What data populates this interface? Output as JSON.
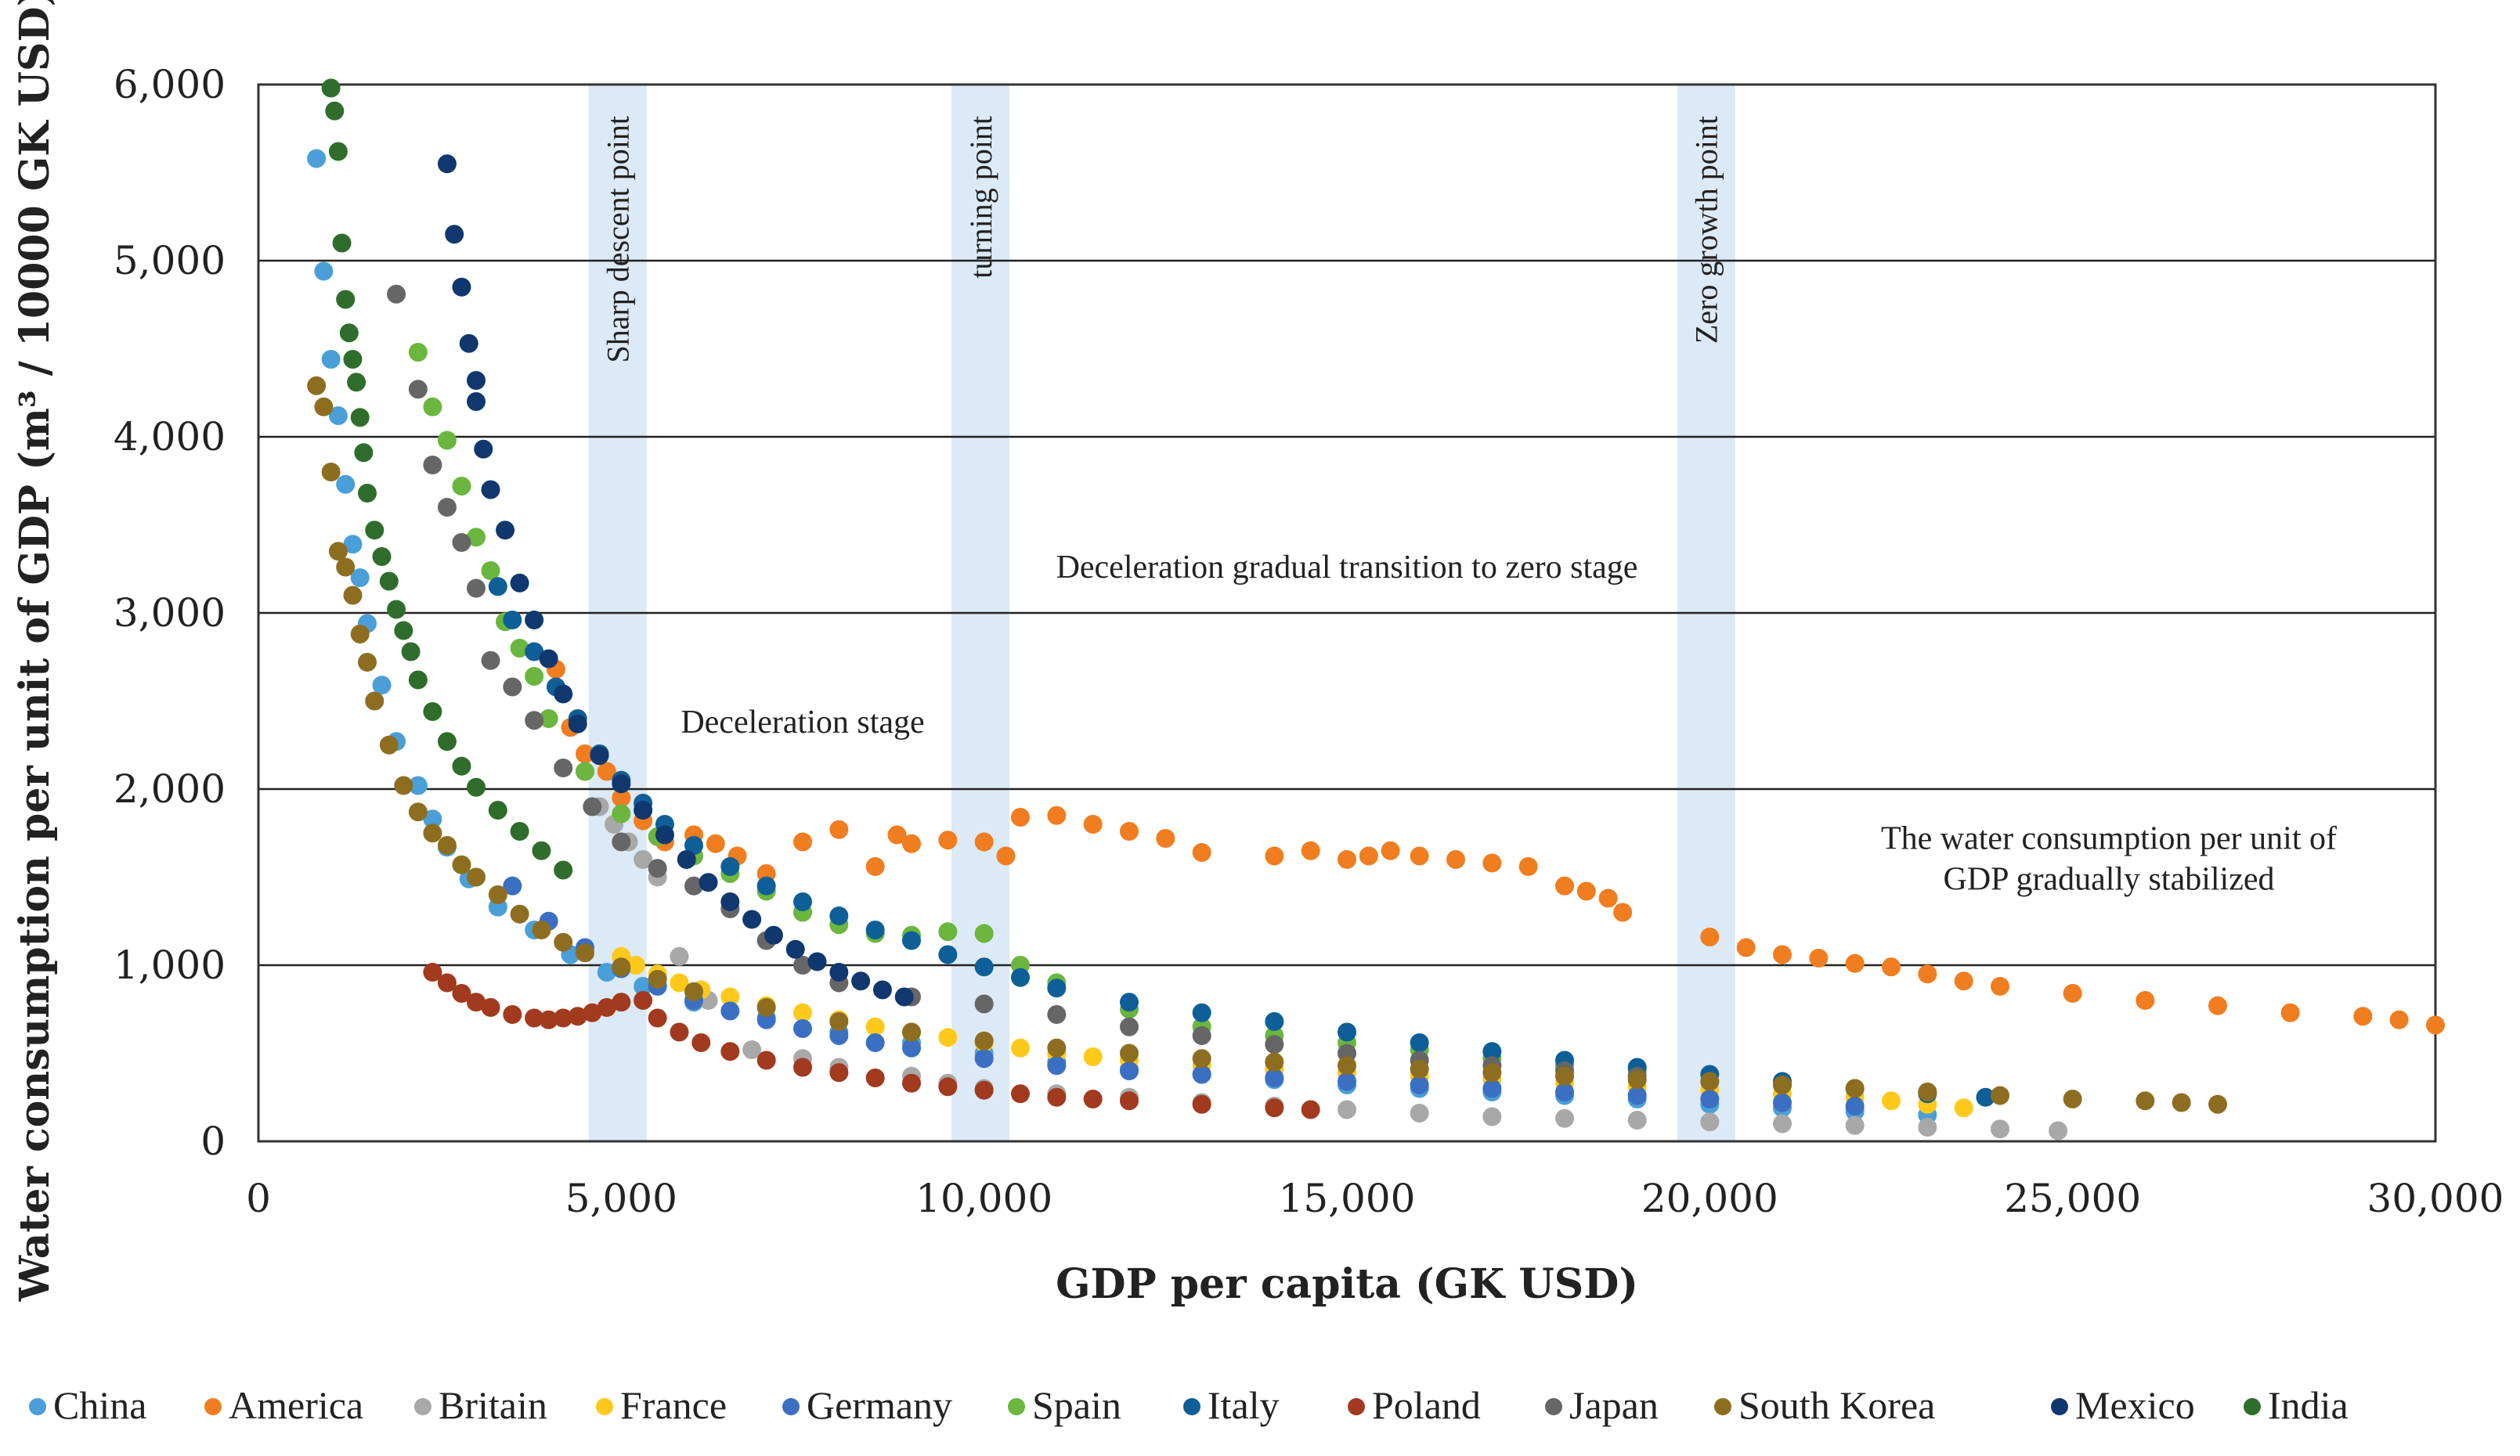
{
  "chart_data": {
    "type": "scatter",
    "title": "",
    "xlabel": "GDP per capita (GK USD)",
    "ylabel": "Water consumption per unit of GDP (m³ / 10000 GK USD)",
    "xlim": [
      0,
      30000
    ],
    "ylim": [
      0,
      6000
    ],
    "x_ticks": [
      0,
      5000,
      10000,
      15000,
      20000,
      25000,
      30000
    ],
    "x_tick_labels": [
      "0",
      "5,000",
      "10,000",
      "15,000",
      "20,000",
      "25,000",
      "30,000"
    ],
    "y_ticks": [
      0,
      1000,
      2000,
      3000,
      4000,
      5000,
      6000
    ],
    "y_tick_labels": [
      "0",
      "1,000",
      "2,000",
      "3,000",
      "4,000",
      "5,000",
      "6,000"
    ],
    "grid": "horizontal",
    "legend_position": "bottom",
    "bands": [
      {
        "label": "Sharp descent point",
        "x_range": [
          4550,
          5350
        ]
      },
      {
        "label": "turning point",
        "x_range": [
          9550,
          10350
        ]
      },
      {
        "label": "Zero growth point",
        "x_range": [
          19550,
          20350
        ]
      }
    ],
    "annotations": [
      {
        "text": "Deceleration gradual transition to zero stage",
        "x": 15000,
        "y": 3200
      },
      {
        "text": "Deceleration stage",
        "x": 7500,
        "y": 2320
      },
      {
        "text": "The water consumption per unit of",
        "x": 25500,
        "y": 1660
      },
      {
        "text": "GDP gradually stabilized",
        "x": 25500,
        "y": 1430
      }
    ],
    "series": [
      {
        "name": "China",
        "color": "#4a9fd8",
        "x": [
          800,
          900,
          1000,
          1100,
          1200,
          1300,
          1400,
          1500,
          1700,
          1900,
          2200,
          2400,
          2600,
          2900,
          3300,
          3800,
          4300,
          4800,
          5300,
          6000,
          7000,
          8000,
          9000,
          10000,
          11000,
          12000,
          13000,
          14000,
          15000,
          16000,
          17000,
          18000,
          19000,
          20000,
          21000,
          22000,
          23000
        ],
        "y": [
          5580,
          4940,
          4440,
          4120,
          3730,
          3390,
          3200,
          2940,
          2590,
          2270,
          2020,
          1830,
          1670,
          1490,
          1330,
          1200,
          1060,
          960,
          880,
          790,
          700,
          620,
          560,
          500,
          450,
          410,
          380,
          350,
          320,
          300,
          280,
          260,
          240,
          210,
          190,
          170,
          150
        ]
      },
      {
        "name": "America",
        "color": "#f07d1f",
        "x": [
          4100,
          4300,
          4500,
          4800,
          5000,
          5300,
          5600,
          6000,
          6300,
          6600,
          7000,
          7500,
          8000,
          8500,
          8800,
          9000,
          9500,
          10000,
          10300,
          10500,
          11000,
          11500,
          12000,
          12500,
          13000,
          14000,
          14500,
          15000,
          15300,
          15600,
          16000,
          16500,
          17000,
          17500,
          18000,
          18300,
          18600,
          18800,
          20000,
          20500,
          21000,
          21500,
          22000,
          22500,
          23000,
          23500,
          24000,
          25000,
          26000,
          27000,
          28000,
          29000,
          29500,
          30000
        ],
        "y": [
          2680,
          2350,
          2200,
          2100,
          1950,
          1820,
          1700,
          1740,
          1690,
          1620,
          1520,
          1700,
          1770,
          1560,
          1740,
          1690,
          1710,
          1700,
          1620,
          1840,
          1850,
          1800,
          1760,
          1720,
          1640,
          1620,
          1650,
          1600,
          1620,
          1650,
          1620,
          1600,
          1580,
          1560,
          1450,
          1420,
          1380,
          1300,
          1160,
          1100,
          1060,
          1040,
          1010,
          990,
          950,
          910,
          880,
          840,
          800,
          770,
          730,
          710,
          690,
          660
        ]
      },
      {
        "name": "Britain",
        "color": "#a8a8a8",
        "x": [
          4500,
          4700,
          4900,
          5100,
          5300,
          5500,
          5800,
          6200,
          6800,
          7500,
          8000,
          9000,
          9500,
          10000,
          11000,
          12000,
          13000,
          14000,
          15000,
          16000,
          17000,
          18000,
          19000,
          20000,
          21000,
          22000,
          23000,
          24000,
          24800
        ],
        "y": [
          2100,
          1900,
          1800,
          1700,
          1600,
          1500,
          1050,
          800,
          520,
          470,
          420,
          370,
          330,
          300,
          270,
          250,
          220,
          200,
          180,
          160,
          140,
          130,
          120,
          110,
          100,
          90,
          80,
          70,
          60
        ]
      },
      {
        "name": "France",
        "color": "#ffc91c",
        "x": [
          5000,
          5200,
          5500,
          5800,
          6100,
          6500,
          7000,
          7500,
          8000,
          8500,
          9000,
          9500,
          10000,
          10500,
          11000,
          11500,
          12000,
          13000,
          14000,
          15000,
          16000,
          17000,
          18000,
          19000,
          20000,
          21000,
          22000,
          22500,
          23000,
          23500
        ],
        "y": [
          1050,
          1000,
          950,
          900,
          860,
          820,
          770,
          730,
          690,
          650,
          620,
          590,
          560,
          530,
          500,
          480,
          460,
          430,
          410,
          390,
          370,
          350,
          330,
          310,
          290,
          270,
          250,
          230,
          210,
          190
        ]
      },
      {
        "name": "Germany",
        "color": "#3b6fc2",
        "x": [
          3500,
          4000,
          4500,
          5000,
          5500,
          6000,
          6500,
          7000,
          7500,
          8000,
          8500,
          9000,
          10000,
          11000,
          12000,
          13000,
          14000,
          15000,
          16000,
          17000,
          18000,
          19000,
          20000,
          21000,
          22000
        ],
        "y": [
          1450,
          1250,
          1100,
          980,
          880,
          800,
          740,
          690,
          640,
          600,
          560,
          530,
          470,
          430,
          400,
          380,
          360,
          340,
          320,
          300,
          280,
          260,
          240,
          220,
          200
        ]
      },
      {
        "name": "Spain",
        "color": "#6ab63e",
        "x": [
          2200,
          2400,
          2600,
          2800,
          3000,
          3200,
          3400,
          3600,
          3800,
          4000,
          4500,
          5000,
          5500,
          6000,
          6500,
          7000,
          7500,
          8000,
          8500,
          9000,
          9500,
          10000,
          10500,
          11000,
          12000,
          13000,
          14000,
          15000,
          16000,
          17000,
          18000,
          19000
        ],
        "y": [
          4480,
          4170,
          3980,
          3720,
          3430,
          3240,
          2950,
          2800,
          2640,
          2400,
          2100,
          1860,
          1730,
          1620,
          1520,
          1420,
          1300,
          1230,
          1180,
          1170,
          1190,
          1180,
          1000,
          900,
          750,
          650,
          600,
          560,
          520,
          470,
          430,
          400
        ]
      },
      {
        "name": "Italy",
        "color": "#0e5f97",
        "x": [
          3300,
          3500,
          3800,
          4100,
          4400,
          4700,
          5000,
          5300,
          5600,
          6000,
          6500,
          7000,
          7500,
          8000,
          8500,
          9000,
          9500,
          10000,
          10500,
          11000,
          12000,
          13000,
          14000,
          15000,
          16000,
          17000,
          18000,
          19000,
          20000,
          21000,
          22000,
          23000,
          23800
        ],
        "y": [
          3150,
          2960,
          2780,
          2580,
          2400,
          2200,
          2050,
          1920,
          1800,
          1680,
          1560,
          1450,
          1360,
          1280,
          1200,
          1140,
          1060,
          990,
          930,
          870,
          790,
          730,
          680,
          620,
          560,
          510,
          460,
          420,
          380,
          340,
          300,
          270,
          250
        ]
      },
      {
        "name": "Poland",
        "color": "#a13a1e",
        "x": [
          2400,
          2600,
          2800,
          3000,
          3200,
          3500,
          3800,
          4000,
          4200,
          4400,
          4600,
          4800,
          5000,
          5300,
          5500,
          5800,
          6100,
          6500,
          7000,
          7500,
          8000,
          8500,
          9000,
          9500,
          10000,
          10500,
          11000,
          11500,
          12000,
          13000,
          14000,
          14500
        ],
        "y": [
          960,
          900,
          840,
          790,
          760,
          720,
          700,
          690,
          700,
          710,
          730,
          760,
          790,
          800,
          700,
          620,
          560,
          510,
          460,
          420,
          390,
          360,
          330,
          310,
          290,
          270,
          250,
          240,
          230,
          210,
          190,
          180
        ]
      },
      {
        "name": "Japan",
        "color": "#666666",
        "x": [
          1900,
          2200,
          2400,
          2600,
          2800,
          3000,
          3200,
          3500,
          3800,
          4200,
          4600,
          5000,
          5500,
          6000,
          6500,
          7000,
          7500,
          8000,
          9000,
          10000,
          11000,
          12000,
          13000,
          14000,
          15000,
          16000,
          17000,
          18000,
          19000,
          20000,
          21000,
          22000,
          23000
        ],
        "y": [
          4810,
          4270,
          3840,
          3600,
          3400,
          3140,
          2730,
          2580,
          2390,
          2120,
          1900,
          1700,
          1550,
          1450,
          1320,
          1140,
          1000,
          900,
          820,
          780,
          720,
          650,
          600,
          550,
          500,
          460,
          430,
          400,
          370,
          340,
          320,
          300,
          280
        ]
      },
      {
        "name": "South Korea",
        "color": "#8d6e20",
        "x": [
          800,
          900,
          1000,
          1100,
          1200,
          1300,
          1400,
          1500,
          1600,
          1800,
          2000,
          2200,
          2400,
          2600,
          2800,
          3000,
          3300,
          3600,
          3900,
          4200,
          4500,
          5000,
          5500,
          6000,
          7000,
          8000,
          9000,
          10000,
          11000,
          12000,
          13000,
          14000,
          15000,
          16000,
          17000,
          18000,
          19000,
          20000,
          21000,
          22000,
          23000,
          24000,
          25000,
          26000,
          26500,
          27000
        ],
        "y": [
          4290,
          4170,
          3800,
          3350,
          3260,
          3100,
          2880,
          2720,
          2500,
          2250,
          2020,
          1870,
          1750,
          1680,
          1570,
          1500,
          1400,
          1290,
          1200,
          1130,
          1070,
          990,
          920,
          850,
          760,
          680,
          620,
          570,
          530,
          500,
          470,
          450,
          430,
          410,
          390,
          370,
          350,
          340,
          320,
          300,
          280,
          260,
          240,
          230,
          220,
          210
        ]
      },
      {
        "name": "Mexico",
        "color": "#10386f",
        "x": [
          2600,
          2700,
          2800,
          2900,
          3000,
          3000,
          3100,
          3200,
          3400,
          3600,
          3800,
          4000,
          4200,
          4400,
          4700,
          5000,
          5300,
          5600,
          5900,
          6200,
          6500,
          6800,
          7100,
          7400,
          7700,
          8000,
          8300,
          8600,
          8900
        ],
        "y": [
          5550,
          5150,
          4850,
          4530,
          4320,
          4200,
          3930,
          3700,
          3470,
          3170,
          2960,
          2740,
          2540,
          2370,
          2190,
          2030,
          1880,
          1740,
          1600,
          1470,
          1360,
          1260,
          1170,
          1090,
          1020,
          960,
          910,
          860,
          820
        ]
      },
      {
        "name": "India",
        "color": "#2f6d2c",
        "x": [
          1000,
          1050,
          1100,
          1150,
          1200,
          1250,
          1300,
          1350,
          1400,
          1450,
          1500,
          1600,
          1700,
          1800,
          1900,
          2000,
          2100,
          2200,
          2400,
          2600,
          2800,
          3000,
          3300,
          3600,
          3900,
          4200
        ],
        "y": [
          5980,
          5850,
          5620,
          5100,
          4780,
          4590,
          4440,
          4310,
          4110,
          3910,
          3680,
          3470,
          3320,
          3180,
          3020,
          2900,
          2780,
          2620,
          2440,
          2270,
          2130,
          2010,
          1880,
          1760,
          1650,
          1540
        ]
      }
    ]
  }
}
